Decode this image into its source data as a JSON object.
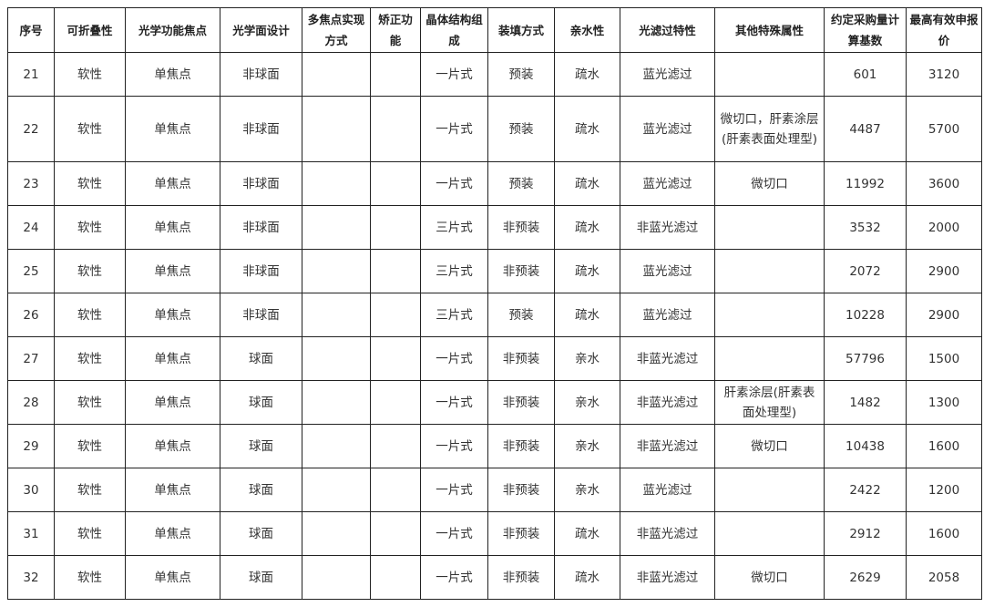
{
  "table": {
    "headers": [
      "序号",
      "可折叠性",
      "光学功能焦点",
      "光学面设计",
      "多焦点实现方式",
      "矫正功能",
      "晶体结构组成",
      "装填方式",
      "亲水性",
      "光滤过特性",
      "其他特殊属性",
      "约定采购量计算基数",
      "最高有效申报价"
    ],
    "rows": [
      [
        "21",
        "软性",
        "单焦点",
        "非球面",
        "",
        "",
        "一片式",
        "预装",
        "疏水",
        "蓝光滤过",
        "",
        "601",
        "3120"
      ],
      [
        "22",
        "软性",
        "单焦点",
        "非球面",
        "",
        "",
        "一片式",
        "预装",
        "疏水",
        "蓝光滤过",
        "微切口，肝素涂层(肝素表面处理型)",
        "4487",
        "5700"
      ],
      [
        "23",
        "软性",
        "单焦点",
        "非球面",
        "",
        "",
        "一片式",
        "预装",
        "疏水",
        "蓝光滤过",
        "微切口",
        "11992",
        "3600"
      ],
      [
        "24",
        "软性",
        "单焦点",
        "非球面",
        "",
        "",
        "三片式",
        "非预装",
        "疏水",
        "非蓝光滤过",
        "",
        "3532",
        "2000"
      ],
      [
        "25",
        "软性",
        "单焦点",
        "非球面",
        "",
        "",
        "三片式",
        "非预装",
        "疏水",
        "蓝光滤过",
        "",
        "2072",
        "2900"
      ],
      [
        "26",
        "软性",
        "单焦点",
        "非球面",
        "",
        "",
        "三片式",
        "预装",
        "疏水",
        "蓝光滤过",
        "",
        "10228",
        "2900"
      ],
      [
        "27",
        "软性",
        "单焦点",
        "球面",
        "",
        "",
        "一片式",
        "非预装",
        "亲水",
        "非蓝光滤过",
        "",
        "57796",
        "1500"
      ],
      [
        "28",
        "软性",
        "单焦点",
        "球面",
        "",
        "",
        "一片式",
        "非预装",
        "亲水",
        "非蓝光滤过",
        "肝素涂层(肝素表面处理型)",
        "1482",
        "1300"
      ],
      [
        "29",
        "软性",
        "单焦点",
        "球面",
        "",
        "",
        "一片式",
        "非预装",
        "亲水",
        "非蓝光滤过",
        "微切口",
        "10438",
        "1600"
      ],
      [
        "30",
        "软性",
        "单焦点",
        "球面",
        "",
        "",
        "一片式",
        "非预装",
        "亲水",
        "蓝光滤过",
        "",
        "2422",
        "1200"
      ],
      [
        "31",
        "软性",
        "单焦点",
        "球面",
        "",
        "",
        "一片式",
        "非预装",
        "疏水",
        "非蓝光滤过",
        "",
        "2912",
        "1600"
      ],
      [
        "32",
        "软性",
        "单焦点",
        "球面",
        "",
        "",
        "一片式",
        "非预装",
        "疏水",
        "非蓝光滤过",
        "微切口",
        "2629",
        "2058"
      ]
    ]
  }
}
